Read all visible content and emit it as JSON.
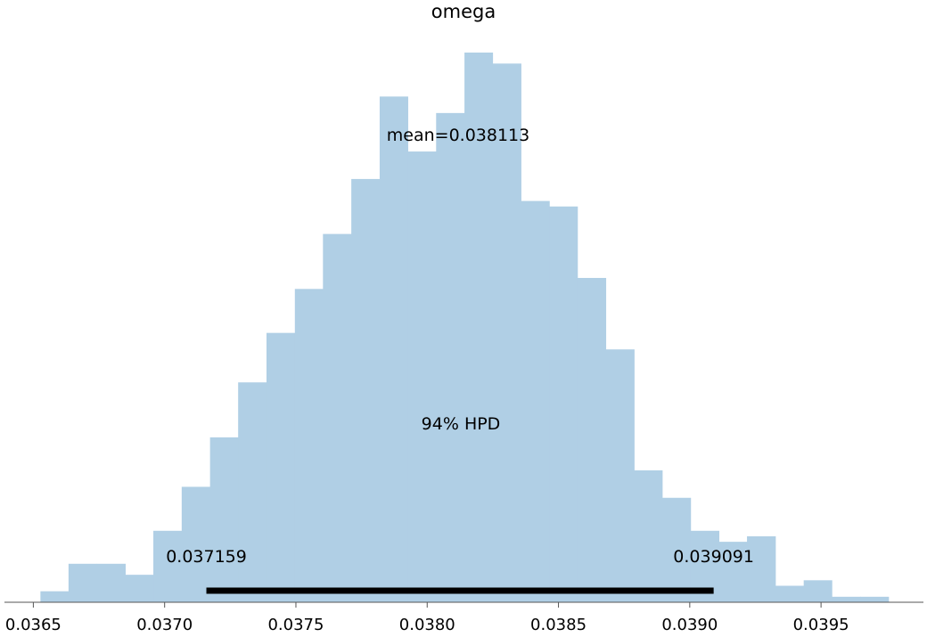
{
  "chart_data": {
    "type": "bar",
    "title": "omega",
    "xlabel": "",
    "ylabel": "",
    "bar_color": "#b0cfe5",
    "hpd_color": "#000000",
    "xlim": [
      0.03639,
      0.03989
    ],
    "xticks": [
      0.0365,
      0.037,
      0.0375,
      0.038,
      0.0385,
      0.039,
      0.0395
    ],
    "xtick_labels": [
      "0.0365",
      "0.0370",
      "0.0375",
      "0.0380",
      "0.0385",
      "0.0390",
      "0.0395"
    ],
    "ylim": [
      0,
      100
    ],
    "bin_edges": [
      0.036527,
      0.036634,
      0.036742,
      0.03685,
      0.036957,
      0.037065,
      0.037173,
      0.03728,
      0.037388,
      0.037496,
      0.037603,
      0.037711,
      0.037819,
      0.037926,
      0.038034,
      0.038142,
      0.038249,
      0.038357,
      0.038465,
      0.038572,
      0.03868,
      0.038788,
      0.038895,
      0.039003,
      0.039111,
      0.039218,
      0.039326,
      0.039434,
      0.039541,
      0.039649,
      0.039757
    ],
    "counts": [
      2,
      7,
      7,
      5,
      13,
      21,
      30,
      40,
      49,
      57,
      67,
      77,
      92,
      82,
      89,
      100,
      98,
      73,
      72,
      59,
      46,
      24,
      19,
      13,
      11,
      12,
      3,
      4,
      1,
      1
    ],
    "hpd": {
      "label": "94% HPD",
      "low": 0.037159,
      "high": 0.039091,
      "low_label": "0.037159",
      "high_label": "0.039091"
    },
    "mean": {
      "value": 0.038113,
      "label": "mean=0.038113"
    },
    "grid": false,
    "legend": "none"
  }
}
